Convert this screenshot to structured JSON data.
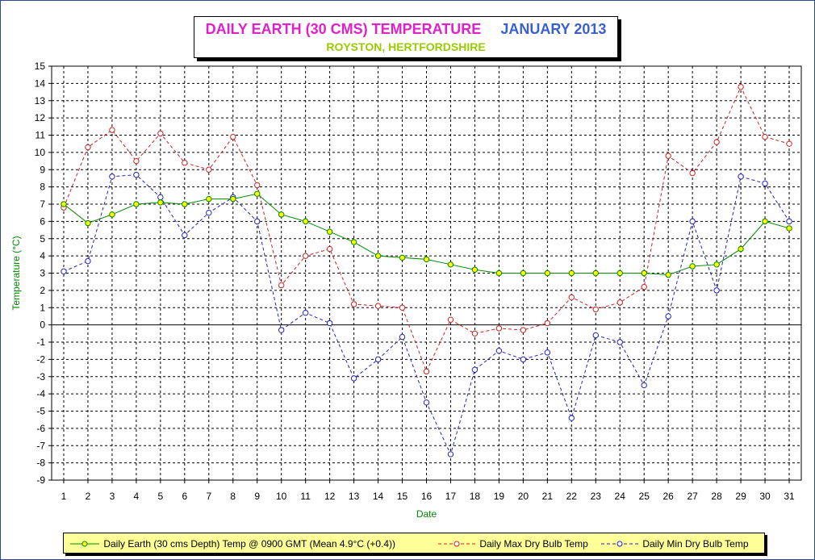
{
  "colors": {
    "title": "#e020c8",
    "title_date": "#3a5fd0",
    "subtitle": "#99cc00",
    "axis_label": "#008800",
    "earth": "#008800",
    "earth_marker": "#ffff00",
    "max": "#cc2222",
    "min": "#2222bb",
    "grid": "#000000"
  },
  "chart_data": {
    "type": "line",
    "title": "DAILY EARTH (30 CMS) TEMPERATURE",
    "title_date": "JANUARY 2013",
    "subtitle": "ROYSTON, HERTFORDSHIRE",
    "xlabel": "Date",
    "ylabel": "Temperature (°C)",
    "ylim": [
      -9,
      15
    ],
    "y_ticks": [
      15,
      14,
      13,
      12,
      11,
      10,
      9,
      8,
      7,
      6,
      5,
      4,
      3,
      2,
      1,
      0,
      -1,
      -2,
      -3,
      -4,
      -5,
      -6,
      -7,
      -8,
      -9
    ],
    "x": [
      1,
      2,
      3,
      4,
      5,
      6,
      7,
      8,
      9,
      10,
      11,
      12,
      13,
      14,
      15,
      16,
      17,
      18,
      19,
      20,
      21,
      22,
      23,
      24,
      25,
      26,
      27,
      28,
      29,
      30,
      31
    ],
    "grid": true,
    "legend_position": "bottom",
    "series": [
      {
        "name": "Daily Earth (30 cms Depth) Temp @ 0900 GMT (Mean 4.9°C (+0.4))",
        "style": "solid",
        "values": [
          7.0,
          5.9,
          6.4,
          7.0,
          7.1,
          7.0,
          7.3,
          7.3,
          7.6,
          6.4,
          6.0,
          5.4,
          4.8,
          4.0,
          3.9,
          3.8,
          3.5,
          3.2,
          3.0,
          3.0,
          3.0,
          3.0,
          3.0,
          3.0,
          3.0,
          2.9,
          3.4,
          3.5,
          4.4,
          6.0,
          5.6
        ]
      },
      {
        "name": "Daily Max Dry Bulb Temp",
        "style": "dashed",
        "values": [
          6.8,
          10.3,
          11.3,
          9.5,
          11.1,
          9.4,
          9.0,
          10.9,
          8.1,
          2.3,
          4.0,
          4.4,
          1.2,
          1.1,
          1.0,
          -2.7,
          0.3,
          -0.5,
          -0.2,
          -0.3,
          0.1,
          1.6,
          0.9,
          1.3,
          2.2,
          9.8,
          8.8,
          10.6,
          13.8,
          10.9,
          10.5
        ]
      },
      {
        "name": "Daily Min Dry Bulb Temp",
        "style": "dashed",
        "values": [
          3.1,
          3.7,
          8.6,
          8.7,
          7.4,
          5.2,
          6.5,
          7.4,
          6.0,
          -0.3,
          0.7,
          0.1,
          -3.1,
          -2.0,
          -0.7,
          -4.5,
          -7.5,
          -2.6,
          -1.5,
          -2.0,
          -1.6,
          -5.4,
          -0.6,
          -1.0,
          -3.5,
          0.5,
          6.0,
          2.0,
          8.6,
          8.2,
          6.0
        ]
      }
    ]
  }
}
